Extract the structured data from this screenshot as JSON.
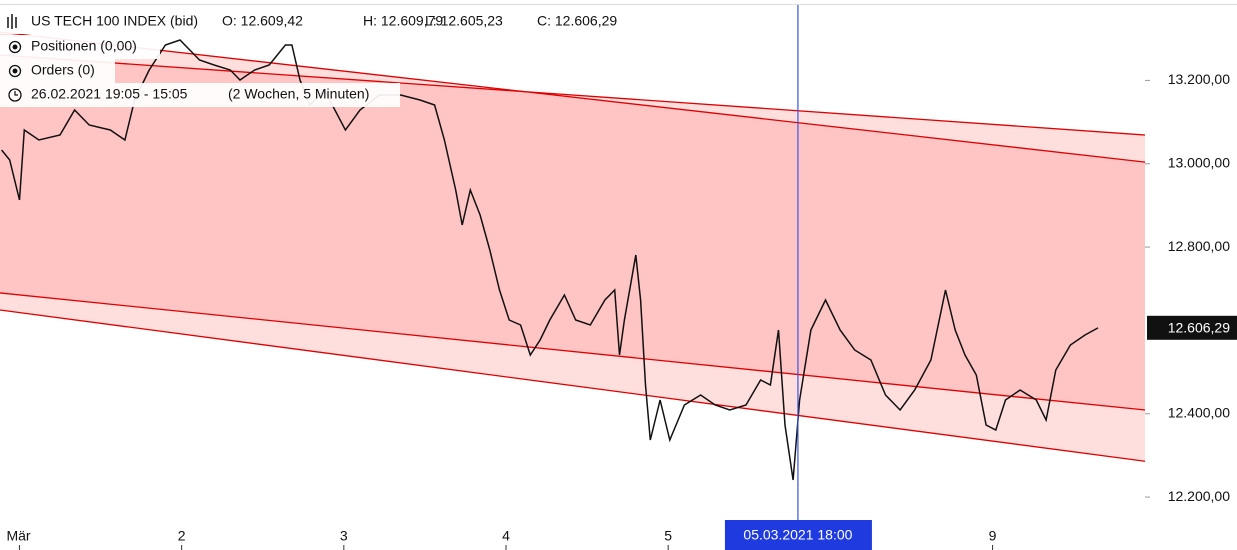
{
  "chart_data": {
    "type": "line",
    "title": "US TECH 100 INDEX (bid)",
    "ohlc_labels": [
      "O: 12.609,42",
      "H: 12.609,79",
      "L: 12.605,23",
      "C: 12.606,29"
    ],
    "positions": "Positionen (0,00)",
    "orders": "Orders (0)",
    "period": "26.02.2021 19:05 - 15:05",
    "period_note": "(2 Wochen, 5 Minuten)",
    "xlim": [
      -0.12,
      6.94
    ],
    "ylim": [
      12145,
      13393
    ],
    "xticks": [
      {
        "value": 0,
        "label": "Mär"
      },
      {
        "value": 1,
        "label": "2"
      },
      {
        "value": 2,
        "label": "3"
      },
      {
        "value": 3,
        "label": "4"
      },
      {
        "value": 4,
        "label": "5"
      },
      {
        "value": 6,
        "label": "9"
      }
    ],
    "yticks": [
      {
        "value": 12200,
        "label": "12.200,00"
      },
      {
        "value": 12400,
        "label": "12.400,00"
      },
      {
        "value": 12800,
        "label": "12.800,00"
      },
      {
        "value": 13000,
        "label": "13.000,00"
      },
      {
        "value": 13200,
        "label": "13.200,00"
      }
    ],
    "last_price": {
      "value": 12606.29,
      "label": "12.606,29"
    },
    "crosshair": {
      "value": 4.8,
      "label": "05.03.2021 18:00",
      "color": "#3a55e0"
    },
    "channels": [
      {
        "x": [
          -0.12,
          6.94
        ],
        "y": [
          13316,
          13004
        ]
      },
      {
        "x": [
          -0.12,
          6.94
        ],
        "y": [
          13261,
          13069
        ]
      },
      {
        "x": [
          -0.12,
          6.94
        ],
        "y": [
          12690,
          12409
        ]
      },
      {
        "x": [
          -0.12,
          6.94
        ],
        "y": [
          12649,
          12286
        ]
      }
    ],
    "channel_color": "#e00000",
    "channel_fill": "#ffc4c4",
    "channel_edge_fill": "#ffdede",
    "series": [
      {
        "name": "US TECH 100 INDEX (bid)",
        "color": "#111111",
        "x": [
          -0.11,
          -0.06,
          0,
          0.03,
          0.12,
          0.25,
          0.34,
          0.43,
          0.56,
          0.65,
          0.71,
          0.8,
          0.9,
          0.99,
          1.05,
          1.11,
          1.2,
          1.3,
          1.36,
          1.45,
          1.54,
          1.64,
          1.68,
          1.73,
          1.79,
          1.88,
          2.01,
          2.1,
          2.22,
          2.35,
          2.47,
          2.56,
          2.62,
          2.69,
          2.73,
          2.78,
          2.84,
          2.9,
          2.96,
          3.02,
          3.09,
          3.15,
          3.21,
          3.27,
          3.36,
          3.43,
          3.52,
          3.61,
          3.67,
          3.7,
          3.73,
          3.8,
          3.83,
          3.86,
          3.89,
          3.95,
          4.01,
          4.1,
          4.2,
          4.29,
          4.38,
          4.48,
          4.57,
          4.63,
          4.68,
          4.72,
          4.77,
          4.81,
          4.88,
          4.97,
          5.06,
          5.15,
          5.25,
          5.34,
          5.43,
          5.52,
          5.62,
          5.71,
          5.77,
          5.83,
          5.9,
          5.96,
          6.02,
          6.08,
          6.17,
          6.27,
          6.33,
          6.39,
          6.48,
          6.57,
          6.65
        ],
        "values": [
          13033,
          13009,
          12913,
          13081,
          13057,
          13069,
          13129,
          13093,
          13081,
          13057,
          13153,
          13225,
          13285,
          13297,
          13273,
          13249,
          13237,
          13225,
          13201,
          13225,
          13237,
          13285,
          13285,
          13201,
          13141,
          13177,
          13081,
          13129,
          13165,
          13165,
          13153,
          13141,
          13057,
          12937,
          12853,
          12937,
          12877,
          12793,
          12697,
          12625,
          12613,
          12541,
          12577,
          12625,
          12685,
          12625,
          12613,
          12673,
          12697,
          12541,
          12625,
          12781,
          12673,
          12469,
          12337,
          12433,
          12337,
          12421,
          12445,
          12421,
          12409,
          12421,
          12481,
          12469,
          12601,
          12373,
          12241,
          12433,
          12601,
          12673,
          12601,
          12553,
          12529,
          12445,
          12409,
          12457,
          12529,
          12697,
          12601,
          12541,
          12493,
          12373,
          12361,
          12433,
          12457,
          12433,
          12385,
          12505,
          12565,
          12589,
          12606
        ]
      }
    ]
  }
}
